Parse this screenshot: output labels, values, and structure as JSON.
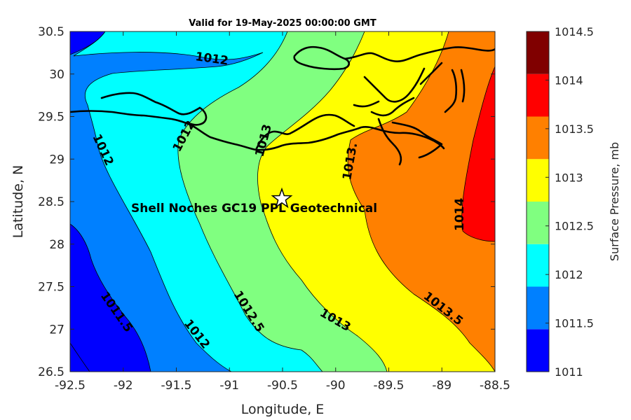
{
  "title": "Valid for 19-May-2025 00:00:00 GMT",
  "x_axis": {
    "label": "Longitude, E",
    "ticks": [
      "-92.5",
      "-92",
      "-91.5",
      "-91",
      "-90.5",
      "-90",
      "-89.5",
      "-89",
      "-88.5"
    ]
  },
  "y_axis": {
    "label": "Latitude, N",
    "ticks": [
      "30.5",
      "30",
      "29.5",
      "29",
      "28.5",
      "28",
      "27.5",
      "27",
      "26.5"
    ]
  },
  "colorbar": {
    "label": "Surface Pressure, mb",
    "ticks": [
      "1014.5",
      "1014",
      "1013.5",
      "1013",
      "1012.5",
      "1012",
      "1011.5",
      "1011"
    ],
    "band_colors": [
      "#0000ff",
      "#0080ff",
      "#00ffff",
      "#80ff80",
      "#ffff00",
      "#ff8000",
      "#ff0000",
      "#800000"
    ]
  },
  "contour_labels": {
    "c1012_top": "1012",
    "c1012_w": "1012",
    "c1012_coast": "1012",
    "c1013_coast": "1013",
    "c1013_5_coast": "1013.",
    "c1014": "1014",
    "c1011_5": "1011.5",
    "c1012_s": "1012",
    "c1012_5": "1012.5",
    "c1013_s": "1013",
    "c1013_5_s": "1013.5"
  },
  "site": {
    "name": "Shell Noches   GC19 PPL  Geotechnical",
    "lon": -90.52,
    "lat": 28.55,
    "marker": "star-icon"
  },
  "chart_data": {
    "type": "contour",
    "variable": "Surface Pressure",
    "units": "mb",
    "xlim": [
      -92.5,
      -88.5
    ],
    "ylim": [
      26.5,
      30.5
    ],
    "levels": [
      1011,
      1011.5,
      1012,
      1012.5,
      1013,
      1013.5,
      1014,
      1014.5
    ],
    "labeled_contours": [
      1011.5,
      1012,
      1012.5,
      1013,
      1013.5,
      1014
    ],
    "gradient": "pressure increases from southwest (~1011) to east (~1014)"
  }
}
